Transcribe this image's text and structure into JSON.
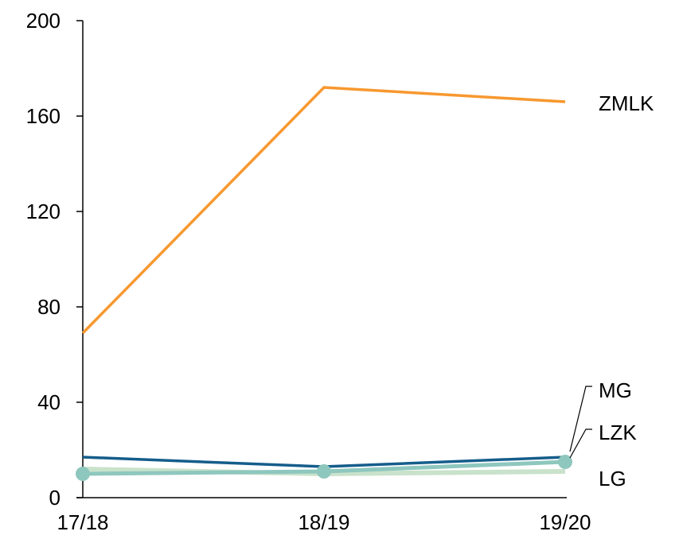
{
  "chart_data": {
    "type": "line",
    "categories": [
      "17/18",
      "18/19",
      "19/20"
    ],
    "ylim": [
      0,
      200
    ],
    "yticks": [
      0,
      40,
      80,
      120,
      160,
      200
    ],
    "grid": false,
    "legend": "direct labels at right end of lines",
    "series": [
      {
        "name": "ZMLK",
        "values": [
          69,
          172,
          166
        ],
        "color": "#F7982F",
        "markers": false
      },
      {
        "name": "MG",
        "values": [
          17,
          13,
          17
        ],
        "color": "#155D8B",
        "markers": false
      },
      {
        "name": "LZK",
        "values": [
          10,
          11,
          15
        ],
        "color": "#8EC7BE",
        "markers": true
      },
      {
        "name": "LG",
        "values": [
          12,
          10,
          11
        ],
        "color": "#C9E2CB",
        "markers": false
      }
    ]
  }
}
